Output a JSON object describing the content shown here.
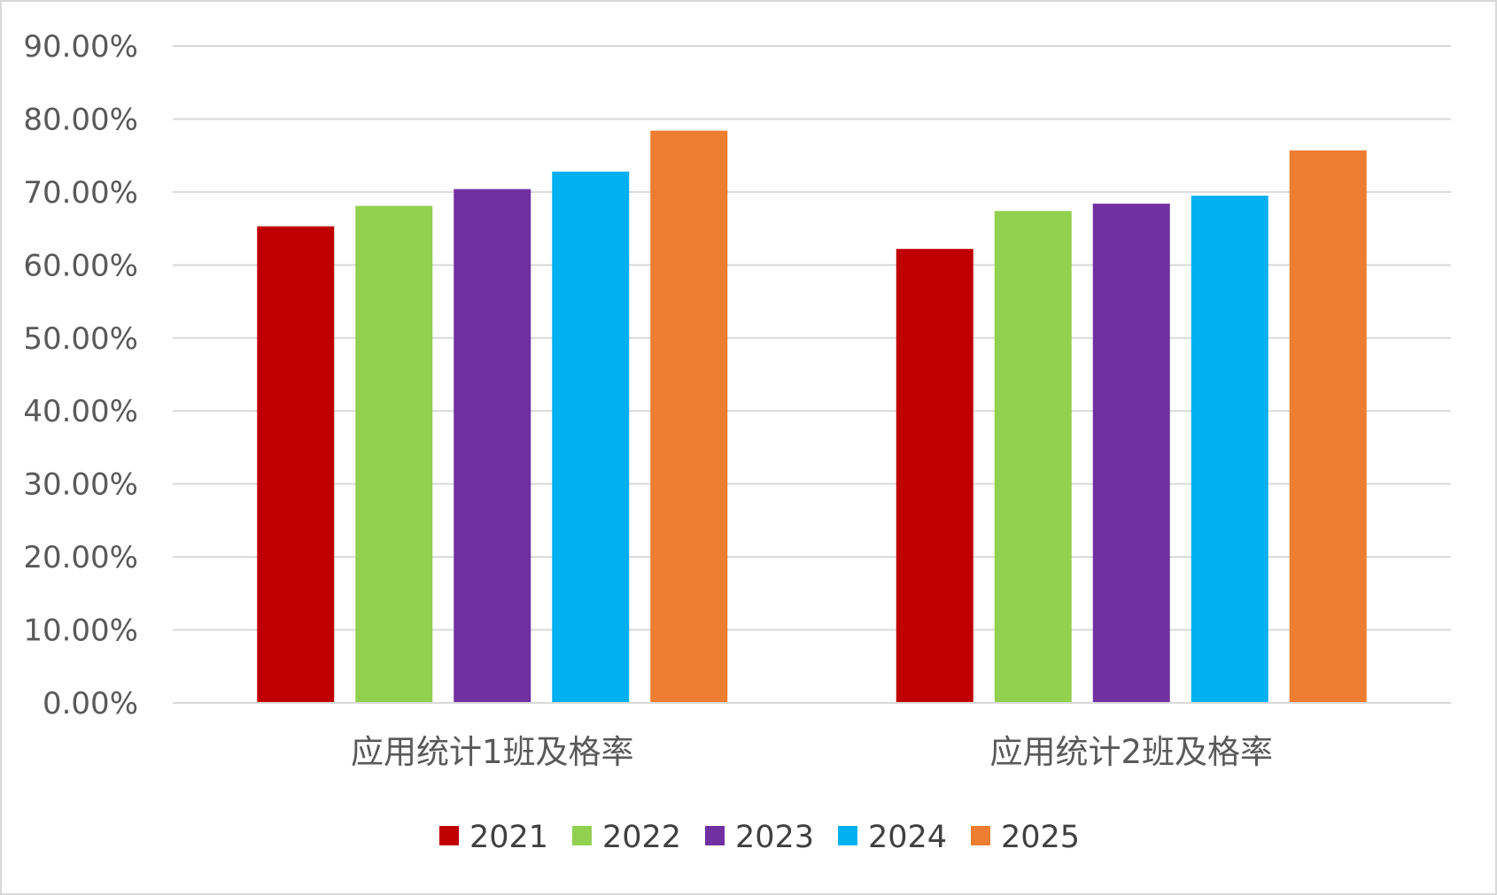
{
  "chart_data": {
    "type": "bar",
    "title": "",
    "xlabel": "",
    "ylabel": "",
    "categories": [
      "应用统计1班及格率",
      "应用统计2班及格率"
    ],
    "series": [
      {
        "name": "2021",
        "color": "#c00000",
        "values": [
          0.653,
          0.622
        ]
      },
      {
        "name": "2022",
        "color": "#92d050",
        "values": [
          0.681,
          0.674
        ]
      },
      {
        "name": "2023",
        "color": "#7030a0",
        "values": [
          0.704,
          0.684
        ]
      },
      {
        "name": "2024",
        "color": "#00b0f0",
        "values": [
          0.728,
          0.695
        ]
      },
      {
        "name": "2025",
        "color": "#ed7d31",
        "values": [
          0.784,
          0.757
        ]
      }
    ],
    "yticks": [
      "0.00%",
      "10.00%",
      "20.00%",
      "30.00%",
      "40.00%",
      "50.00%",
      "60.00%",
      "70.00%",
      "80.00%",
      "90.00%"
    ],
    "ylim": [
      0,
      0.9
    ],
    "grid": true,
    "legend_position": "bottom"
  }
}
